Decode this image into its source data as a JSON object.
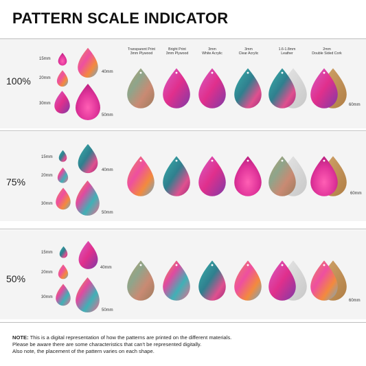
{
  "title": "PATTERN SCALE INDICATOR",
  "materials": [
    {
      "line1": "Transparent Print",
      "line2": "3mm Plywood"
    },
    {
      "line1": "Bright Print",
      "line2": "3mm Plywood"
    },
    {
      "line1": "3mm",
      "line2": "White Acrylic"
    },
    {
      "line1": "3mm",
      "line2": "Clear Acrylic"
    },
    {
      "line1": "1.6-1.8mm",
      "line2": "Leather"
    },
    {
      "line1": "2mm",
      "line2": "Double Sided Cork"
    }
  ],
  "scales": [
    {
      "percent": "100%"
    },
    {
      "percent": "75%"
    },
    {
      "percent": "50%"
    }
  ],
  "sizes": {
    "s15": "15mm",
    "s20": "20mm",
    "s30": "30mm",
    "s40": "40mm",
    "s50": "50mm",
    "s60": "60mm"
  },
  "note": {
    "label": "NOTE:",
    "line1": " This is a digital representation of how the patterns are printed on the different materials.",
    "line2": "Please be aware there are some characteristics that can't be represented digitally.",
    "line3": "Also note, the placement of the pattern varies on each shape."
  }
}
